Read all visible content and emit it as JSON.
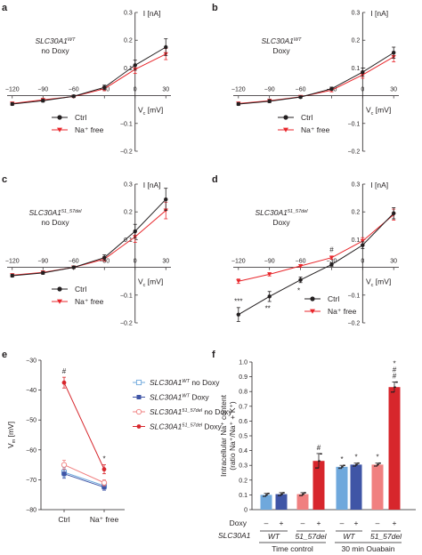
{
  "colors": {
    "ctrl": "#231f20",
    "na_free": "#e8262b",
    "wt_no_doxy": "#6fa8dc",
    "wt_doxy": "#3f55a6",
    "del_no_doxy": "#f08080",
    "del_doxy": "#d7262c"
  },
  "chart_data": [
    {
      "panel": "a",
      "type": "line",
      "genotype": "SLC30A1",
      "genotype_sup": "WT",
      "condition": "no Doxy",
      "ylabel": "I [nA]",
      "xlabel": "V",
      "xlabel_sub": "c",
      "xlabel_unit": " [mV]",
      "x_ticks": [
        "−120",
        "−90",
        "−60",
        "−30",
        "0",
        "30"
      ],
      "y_ticks": [
        "0.3",
        "0.2",
        "0.1",
        "−0.1",
        "−0.2"
      ],
      "xlim": [
        -125,
        35
      ],
      "ylim": [
        -0.2,
        0.3
      ],
      "x": [
        -120,
        -90,
        -60,
        -30,
        0,
        30
      ],
      "series": [
        {
          "name": "Ctrl",
          "key": "ctrl",
          "values": [
            -0.03,
            -0.018,
            -0.002,
            0.03,
            0.11,
            0.175
          ],
          "err": [
            0.005,
            0.005,
            0.004,
            0.008,
            0.018,
            0.03
          ]
        },
        {
          "name": "Na⁺ free",
          "key": "na",
          "values": [
            -0.028,
            -0.015,
            -0.003,
            0.025,
            0.095,
            0.15
          ],
          "err": [
            0.005,
            0.005,
            0.004,
            0.007,
            0.015,
            0.02
          ]
        }
      ],
      "legend": "bottom-left"
    },
    {
      "panel": "b",
      "type": "line",
      "genotype": "SLC30A1",
      "genotype_sup": "WT",
      "condition": "Doxy",
      "ylabel": "I [nA]",
      "xlabel": "V",
      "xlabel_sub": "c",
      "xlabel_unit": " [mV]",
      "x_ticks": [
        "−120",
        "−90",
        "−60",
        "−30",
        "0",
        "30"
      ],
      "y_ticks": [
        "0.3",
        "0.2",
        "0.1",
        "−0.1",
        "−0.2"
      ],
      "xlim": [
        -125,
        35
      ],
      "ylim": [
        -0.2,
        0.3
      ],
      "x": [
        -120,
        -90,
        -60,
        -30,
        0,
        30
      ],
      "series": [
        {
          "name": "Ctrl",
          "key": "ctrl",
          "values": [
            -0.03,
            -0.02,
            -0.005,
            0.025,
            0.085,
            0.155
          ],
          "err": [
            0.005,
            0.005,
            0.004,
            0.006,
            0.015,
            0.02
          ]
        },
        {
          "name": "Na⁺ free",
          "key": "na",
          "values": [
            -0.028,
            -0.018,
            -0.004,
            0.02,
            0.075,
            0.14
          ],
          "err": [
            0.005,
            0.005,
            0.004,
            0.006,
            0.012,
            0.018
          ]
        }
      ],
      "legend": "bottom-left"
    },
    {
      "panel": "c",
      "type": "line",
      "genotype": "SLC30A1",
      "genotype_sup": "51_57del",
      "condition": "no Doxy",
      "ylabel": "I [nA]",
      "xlabel": "V",
      "xlabel_sub": "c",
      "xlabel_unit": " [mV]",
      "x_ticks": [
        "−120",
        "−90",
        "−60",
        "−30",
        "0",
        "30"
      ],
      "y_ticks": [
        "0.3",
        "0.2",
        "0.1",
        "−0.1",
        "−0.2"
      ],
      "xlim": [
        -125,
        35
      ],
      "ylim": [
        -0.2,
        0.3
      ],
      "x": [
        -120,
        -90,
        -60,
        -30,
        0,
        30
      ],
      "series": [
        {
          "name": "Ctrl",
          "key": "ctrl",
          "values": [
            -0.03,
            -0.02,
            0.0,
            0.035,
            0.13,
            0.245
          ],
          "err": [
            0.005,
            0.005,
            0.004,
            0.01,
            0.025,
            0.04
          ]
        },
        {
          "name": "Na⁺ free",
          "key": "na",
          "values": [
            -0.028,
            -0.018,
            0.0,
            0.03,
            0.11,
            0.205
          ],
          "err": [
            0.005,
            0.005,
            0.004,
            0.008,
            0.02,
            0.03
          ]
        }
      ],
      "legend": "bottom-left"
    },
    {
      "panel": "d",
      "type": "line",
      "genotype": "SLC30A1",
      "genotype_sup": "51_57del",
      "condition": "Doxy",
      "ylabel": "I [nA]",
      "xlabel": "V",
      "xlabel_sub": "c",
      "xlabel_unit": " [mV]",
      "x_ticks": [
        "−120",
        "−90",
        "−60",
        "−30",
        "0",
        "30"
      ],
      "y_ticks": [
        "0.3",
        "0.2",
        "0.1",
        "−0.1",
        "−0.2"
      ],
      "xlim": [
        -125,
        35
      ],
      "ylim": [
        -0.2,
        0.3
      ],
      "x": [
        -120,
        -90,
        -60,
        -30,
        0,
        30
      ],
      "series": [
        {
          "name": "Ctrl",
          "key": "ctrl",
          "values": [
            -0.17,
            -0.105,
            -0.045,
            0.01,
            0.08,
            0.195
          ],
          "err": [
            0.025,
            0.018,
            0.01,
            0.006,
            0.012,
            0.02
          ]
        },
        {
          "name": "Na⁺ free",
          "key": "na",
          "values": [
            -0.05,
            -0.025,
            0.005,
            0.035,
            0.095,
            0.19
          ],
          "err": [
            0.008,
            0.006,
            0.004,
            0.006,
            0.012,
            0.02
          ]
        }
      ],
      "significance": [
        {
          "x": -120,
          "label": "***"
        },
        {
          "x": -90,
          "label": "**"
        },
        {
          "x": -60,
          "label": "*"
        },
        {
          "x": -30,
          "label": "#"
        }
      ],
      "legend": "bottom-right"
    },
    {
      "panel": "e",
      "type": "line",
      "ylabel": "V",
      "ylabel_sub": "m",
      "ylabel_unit": " [mV]",
      "categories": [
        "Ctrl",
        "Na⁺ free"
      ],
      "y_ticks": [
        "−30",
        "−40",
        "−50",
        "−60",
        "−70",
        "−80"
      ],
      "ylim": [
        -80,
        -30
      ],
      "series": [
        {
          "name": "SLC30A1",
          "sup": "WT",
          "suffix": " no Doxy",
          "key": "wt_no_doxy",
          "marker": "open-square",
          "values": [
            -67.5,
            -72.0
          ],
          "err": [
            1.5,
            1.0
          ]
        },
        {
          "name": "SLC30A1",
          "sup": "WT",
          "suffix": " Doxy",
          "key": "wt_doxy",
          "marker": "filled-square",
          "values": [
            -68.0,
            -72.5
          ],
          "err": [
            1.5,
            1.0
          ]
        },
        {
          "name": "SLC30A1",
          "sup": "51_57del",
          "suffix": " no Doxy",
          "key": "del_no_doxy",
          "marker": "open-circle",
          "values": [
            -65.0,
            -71.0
          ],
          "err": [
            1.5,
            1.0
          ]
        },
        {
          "name": "SLC30A1",
          "sup": "51_57del",
          "suffix": " Doxy",
          "key": "del_doxy",
          "marker": "filled-circle",
          "values": [
            -37.5,
            -66.5
          ],
          "err": [
            1.8,
            1.5
          ]
        }
      ],
      "annotations": [
        {
          "category": 0,
          "label": "#"
        },
        {
          "category": 1,
          "label": "*"
        }
      ],
      "legend": "right"
    },
    {
      "panel": "f",
      "type": "bar",
      "ylabel": "Intracellular Na⁺ content",
      "ylabel2": "(ratio Na⁺/Na⁺ + K⁺)",
      "y_ticks": [
        "0",
        "0.1",
        "0.2",
        "0.3",
        "0.4",
        "0.5",
        "0.6",
        "0.7",
        "0.8",
        "0.9",
        "1.0"
      ],
      "ylim": [
        0,
        1.0
      ],
      "row_doxy_label": "Doxy",
      "row_gene_label": "SLC30A1",
      "doxy": [
        "–",
        "+",
        "–",
        "+",
        "–",
        "+",
        "–",
        "+"
      ],
      "genes": [
        "WT",
        "51_57del",
        "WT",
        "51_57del"
      ],
      "groups": [
        "Time control",
        "30 min Ouabain"
      ],
      "bars": [
        {
          "value": 0.1,
          "err": 0.01,
          "key": "wt_no_doxy",
          "sig": ""
        },
        {
          "value": 0.105,
          "err": 0.01,
          "key": "wt_doxy",
          "sig": ""
        },
        {
          "value": 0.105,
          "err": 0.01,
          "key": "del_no_doxy",
          "sig": ""
        },
        {
          "value": 0.33,
          "err": 0.05,
          "key": "del_doxy",
          "sig": "#"
        },
        {
          "value": 0.29,
          "err": 0.01,
          "key": "wt_no_doxy",
          "sig": "*"
        },
        {
          "value": 0.305,
          "err": 0.01,
          "key": "wt_doxy",
          "sig": "*"
        },
        {
          "value": 0.305,
          "err": 0.01,
          "key": "del_no_doxy",
          "sig": "*"
        },
        {
          "value": 0.83,
          "err": 0.035,
          "key": "del_doxy",
          "sig": "*\n#\n#"
        }
      ]
    }
  ]
}
